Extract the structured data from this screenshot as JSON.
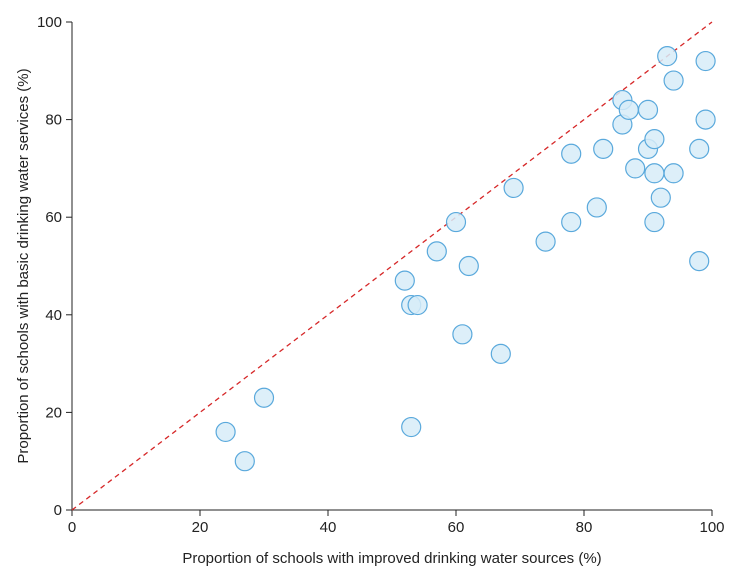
{
  "chart_data": {
    "type": "scatter",
    "title": "",
    "xlabel": "Proportion of schools with improved drinking water sources (%)",
    "ylabel": "Proportion of schools with basic drinking water services (%)",
    "xlim": [
      0,
      100
    ],
    "ylim": [
      0,
      100
    ],
    "x_ticks": [
      "0",
      "20",
      "40",
      "60",
      "80",
      "100"
    ],
    "y_ticks": [
      "0",
      "20",
      "40",
      "60",
      "80",
      "100"
    ],
    "grid": false,
    "legend": "none",
    "reference_line": {
      "from": [
        0,
        0
      ],
      "to": [
        100,
        100
      ],
      "style": "dashed",
      "color": "#d62728"
    },
    "marker_fill": "#d7ecf8",
    "marker_stroke": "#5aa9dc",
    "points": [
      {
        "x": 24,
        "y": 16
      },
      {
        "x": 27,
        "y": 10
      },
      {
        "x": 30,
        "y": 23
      },
      {
        "x": 52,
        "y": 47
      },
      {
        "x": 53,
        "y": 42
      },
      {
        "x": 53,
        "y": 17
      },
      {
        "x": 54,
        "y": 42
      },
      {
        "x": 57,
        "y": 53
      },
      {
        "x": 60,
        "y": 59
      },
      {
        "x": 61,
        "y": 36
      },
      {
        "x": 62,
        "y": 50
      },
      {
        "x": 67,
        "y": 32
      },
      {
        "x": 69,
        "y": 66
      },
      {
        "x": 74,
        "y": 55
      },
      {
        "x": 78,
        "y": 73
      },
      {
        "x": 78,
        "y": 59
      },
      {
        "x": 82,
        "y": 62
      },
      {
        "x": 83,
        "y": 74
      },
      {
        "x": 86,
        "y": 84
      },
      {
        "x": 86,
        "y": 79
      },
      {
        "x": 87,
        "y": 82
      },
      {
        "x": 88,
        "y": 70
      },
      {
        "x": 90,
        "y": 82
      },
      {
        "x": 90,
        "y": 74
      },
      {
        "x": 91,
        "y": 76
      },
      {
        "x": 91,
        "y": 69
      },
      {
        "x": 91,
        "y": 59
      },
      {
        "x": 92,
        "y": 64
      },
      {
        "x": 93,
        "y": 93
      },
      {
        "x": 94,
        "y": 88
      },
      {
        "x": 94,
        "y": 69
      },
      {
        "x": 98,
        "y": 74
      },
      {
        "x": 98,
        "y": 51
      },
      {
        "x": 99,
        "y": 92
      },
      {
        "x": 99,
        "y": 80
      }
    ]
  }
}
